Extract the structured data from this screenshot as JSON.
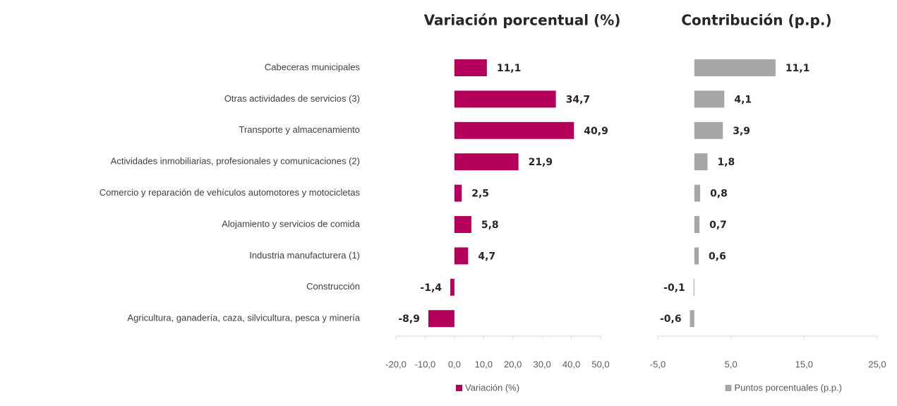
{
  "chart_data": [
    {
      "type": "barh",
      "title": "Variación porcentual (%)",
      "categories": [
        "Cabeceras municipales",
        "Otras actividades de servicios (3)",
        "Transporte y almacenamiento",
        "Actividades inmobiliarias, profesionales y comunicaciones (2)",
        "Comercio y reparación de vehículos automotores y motocicletas",
        "Alojamiento y servicios de comida",
        "Industria manufacturera (1)",
        "Construcción",
        "Agricultura, ganadería, caza, silvicultura, pesca y minería"
      ],
      "series": [
        {
          "name": "Variación (%)",
          "color": "#b5005b",
          "values": [
            11.1,
            34.7,
            40.9,
            21.9,
            2.5,
            5.8,
            4.7,
            -1.4,
            -8.9
          ],
          "value_labels": [
            "11,1",
            "34,7",
            "40,9",
            "21,9",
            "2,5",
            "5,8",
            "4,7",
            "-1,4",
            "-8,9"
          ]
        }
      ],
      "xlim": [
        -20,
        50
      ],
      "xticks": [
        {
          "value": -20,
          "label": "-20,0"
        },
        {
          "value": -10,
          "label": "-10,0"
        },
        {
          "value": 0,
          "label": "0,0"
        },
        {
          "value": 10,
          "label": "10,0"
        },
        {
          "value": 20,
          "label": "20,0"
        },
        {
          "value": 30,
          "label": "30,0"
        },
        {
          "value": 40,
          "label": "40,0"
        },
        {
          "value": 50,
          "label": "50,0"
        }
      ]
    },
    {
      "type": "barh",
      "title": "Contribución (p.p.)",
      "series": [
        {
          "name": "Puntos porcentuales (p.p.)",
          "color": "#a6a6a6",
          "values": [
            11.1,
            4.1,
            3.9,
            1.8,
            0.8,
            0.7,
            0.6,
            -0.1,
            -0.6
          ],
          "value_labels": [
            "11,1",
            "4,1",
            "3,9",
            "1,8",
            "0,8",
            "0,7",
            "0,6",
            "-0,1",
            "-0,6"
          ]
        }
      ],
      "xlim": [
        -5,
        25
      ],
      "xticks": [
        {
          "value": -5,
          "label": "-5,0"
        },
        {
          "value": 5,
          "label": "5,0"
        },
        {
          "value": 15,
          "label": "15,0"
        },
        {
          "value": 25,
          "label": "25,0"
        }
      ]
    }
  ]
}
